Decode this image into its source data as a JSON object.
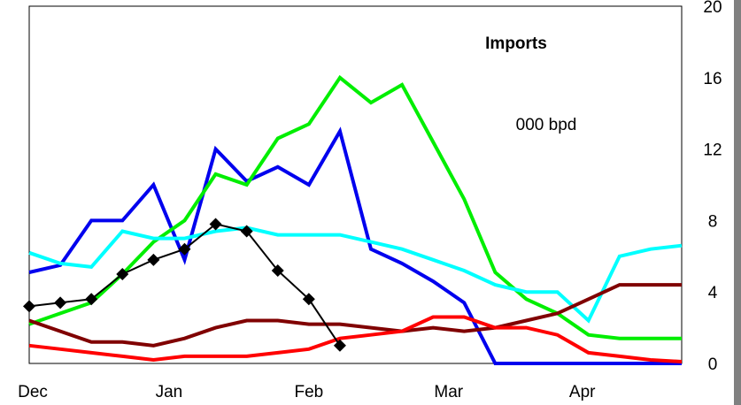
{
  "chart_data": {
    "type": "line",
    "title": "Imports",
    "ylabel": "000 bpd",
    "ylim": [
      0,
      20
    ],
    "yticks": [
      "0",
      "4",
      "8",
      "12",
      "16",
      "20"
    ],
    "xlim": [
      0,
      21
    ],
    "month_labels": [
      {
        "label": "Dec",
        "x": 0
      },
      {
        "label": "Jan",
        "x": 4.5
      },
      {
        "label": "Feb",
        "x": 9
      },
      {
        "label": "Mar",
        "x": 13.5
      },
      {
        "label": "Apr",
        "x": 17.8
      }
    ],
    "grid": false,
    "series": [
      {
        "color": "#0000ee",
        "width": 4,
        "marker": "none",
        "x": [
          0,
          1,
          2,
          3,
          4,
          5,
          6,
          7,
          8,
          9,
          10,
          11,
          12,
          13,
          14,
          15,
          16,
          17,
          18,
          19,
          20,
          21
        ],
        "y": [
          5.1,
          5.5,
          8.0,
          8.0,
          10.0,
          5.8,
          12.0,
          10.2,
          11.0,
          10.0,
          13.0,
          6.4,
          5.6,
          4.6,
          3.4,
          0,
          0,
          0,
          0,
          0,
          0,
          0
        ]
      },
      {
        "color": "#00ee00",
        "width": 4,
        "marker": "none",
        "x": [
          0,
          1,
          2,
          3,
          4,
          5,
          6,
          7,
          8,
          9,
          10,
          11,
          12,
          13,
          14,
          15,
          16,
          17,
          18,
          19,
          20,
          21
        ],
        "y": [
          2.2,
          2.8,
          3.4,
          5.0,
          6.8,
          8.0,
          10.6,
          10.0,
          12.6,
          13.4,
          16.0,
          14.6,
          15.6,
          12.4,
          9.2,
          5.1,
          3.6,
          2.8,
          1.6,
          1.4,
          1.4,
          1.4
        ]
      },
      {
        "color": "#00ffff",
        "width": 4,
        "marker": "none",
        "x": [
          0,
          1,
          2,
          3,
          4,
          5,
          6,
          7,
          8,
          9,
          10,
          11,
          12,
          13,
          14,
          15,
          16,
          17,
          18,
          19,
          20,
          21
        ],
        "y": [
          6.2,
          5.6,
          5.4,
          7.4,
          7.0,
          7.0,
          7.4,
          7.6,
          7.2,
          7.2,
          7.2,
          6.8,
          6.4,
          5.8,
          5.2,
          4.4,
          4.0,
          4.0,
          2.4,
          6.0,
          6.4,
          6.6
        ]
      },
      {
        "color": "#800000",
        "width": 4,
        "marker": "none",
        "x": [
          0,
          1,
          2,
          3,
          4,
          5,
          6,
          7,
          8,
          9,
          10,
          11,
          12,
          13,
          14,
          15,
          16,
          17,
          18,
          19,
          20,
          21
        ],
        "y": [
          2.4,
          1.8,
          1.2,
          1.2,
          1.0,
          1.4,
          2.0,
          2.4,
          2.4,
          2.2,
          2.2,
          2.0,
          1.8,
          2.0,
          1.8,
          2.0,
          2.4,
          2.8,
          3.6,
          4.4,
          4.4,
          4.4
        ]
      },
      {
        "color": "#ff0000",
        "width": 4,
        "marker": "none",
        "x": [
          0,
          1,
          2,
          3,
          4,
          5,
          6,
          7,
          8,
          9,
          10,
          11,
          12,
          13,
          14,
          15,
          16,
          17,
          18,
          19,
          20,
          21
        ],
        "y": [
          1.0,
          0.8,
          0.6,
          0.4,
          0.2,
          0.4,
          0.4,
          0.4,
          0.6,
          0.8,
          1.4,
          1.6,
          1.8,
          2.6,
          2.6,
          2.0,
          2.0,
          1.6,
          0.6,
          0.4,
          0.2,
          0.1
        ]
      },
      {
        "color": "#000000",
        "width": 2,
        "marker": "diamond",
        "x": [
          0,
          1,
          2,
          3,
          4,
          5,
          6,
          7,
          8,
          9,
          10
        ],
        "y": [
          3.2,
          3.4,
          3.6,
          5.0,
          5.8,
          6.4,
          7.8,
          7.4,
          5.2,
          3.6,
          1.0
        ]
      }
    ]
  }
}
